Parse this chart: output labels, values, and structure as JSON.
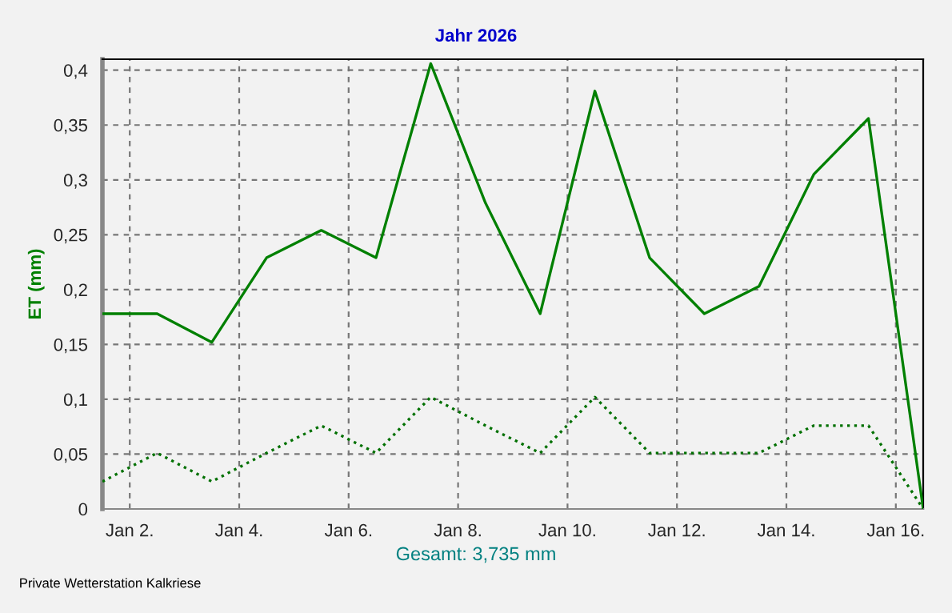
{
  "chart_data": {
    "type": "line",
    "title": "Jahr 2026",
    "ylabel": "ET (mm)",
    "x": [
      "2026-01-01T12:00",
      "2026-01-02T12:00",
      "2026-01-03T12:00",
      "2026-01-04T12:00",
      "2026-01-05T12:00",
      "2026-01-06T12:00",
      "2026-01-07T12:00",
      "2026-01-08T12:00",
      "2026-01-09T12:00",
      "2026-01-10T12:00",
      "2026-01-11T12:00",
      "2026-01-12T12:00",
      "2026-01-13T12:00",
      "2026-01-14T12:00",
      "2026-01-15T12:00",
      "2026-01-16T12:00"
    ],
    "series": [
      {
        "color": "#008000",
        "line_style": "solid",
        "values": [
          0.178,
          0.178,
          0.152,
          0.229,
          0.254,
          0.229,
          0.406,
          0.279,
          0.178,
          0.381,
          0.229,
          0.178,
          0.203,
          0.305,
          0.356,
          0
        ]
      },
      {
        "color": "#007000",
        "line_style": "dotted",
        "values": [
          0.025,
          0.051,
          0.025,
          0.051,
          0.076,
          0.051,
          0.102,
          0.076,
          0.051,
          0.102,
          0.051,
          0.051,
          0.051,
          0.076,
          0.076,
          0
        ]
      }
    ],
    "xlim": [
      "2026-01-01T12:00",
      "2026-01-16T12:00"
    ],
    "xticks": [
      {
        "value": "2026-01-02",
        "label": "Jan 2."
      },
      {
        "value": "2026-01-04",
        "label": "Jan 4."
      },
      {
        "value": "2026-01-06",
        "label": "Jan 6."
      },
      {
        "value": "2026-01-08",
        "label": "Jan 8."
      },
      {
        "value": "2026-01-10",
        "label": "Jan 10."
      },
      {
        "value": "2026-01-12",
        "label": "Jan 12."
      },
      {
        "value": "2026-01-14",
        "label": "Jan 14."
      },
      {
        "value": "2026-01-16",
        "label": "Jan 16."
      }
    ],
    "ylim": [
      0,
      0.41
    ],
    "yticks": [
      0,
      {
        "value": 0.05,
        "label": "0,05"
      },
      {
        "value": 0.1,
        "label": "0,1"
      },
      {
        "value": 0.15,
        "label": "0,15"
      },
      {
        "value": 0.2,
        "label": "0,2"
      },
      {
        "value": 0.25,
        "label": "0,25"
      },
      {
        "value": 0.3,
        "label": "0,3"
      },
      {
        "value": 0.35,
        "label": "0,35"
      },
      {
        "value": 0.4,
        "label": "0,4"
      }
    ],
    "grid": true,
    "marker": "none",
    "annotations": [
      "Gesamt: 3,735 mm",
      "Private Wetterstation Kalkriese"
    ]
  }
}
